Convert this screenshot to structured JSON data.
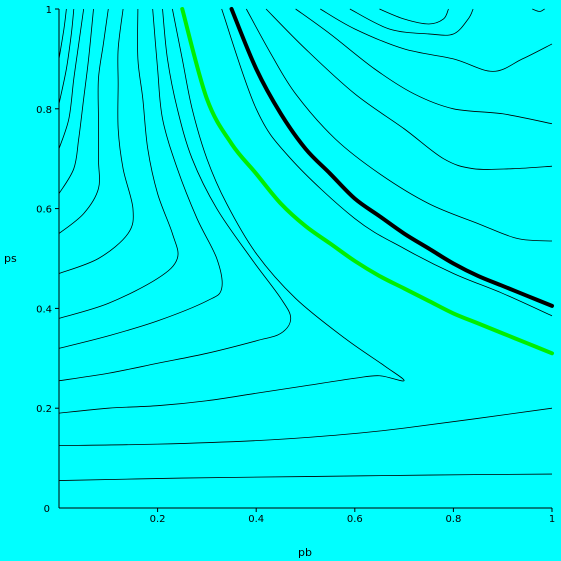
{
  "chart_data": {
    "type": "line",
    "title": "",
    "xlabel": "pb",
    "ylabel": "ps",
    "xlim": [
      0,
      1
    ],
    "ylim": [
      0,
      1
    ],
    "grid": false,
    "background": "#00ffff",
    "x_ticks": [
      "0.2",
      "0.4",
      "0.6",
      "0.8",
      "1"
    ],
    "y_ticks": [
      "0.2",
      "0.4",
      "0.6",
      "0.8",
      "1"
    ],
    "origin_label": "0",
    "contour_color": "#000000",
    "contours": [
      {
        "points": [
          [
            0.0,
            0.055
          ],
          [
            0.25,
            0.06
          ],
          [
            0.5,
            0.063
          ],
          [
            0.75,
            0.066
          ],
          [
            1.0,
            0.068
          ]
        ]
      },
      {
        "points": [
          [
            0.0,
            0.125
          ],
          [
            0.2,
            0.128
          ],
          [
            0.4,
            0.135
          ],
          [
            0.55,
            0.145
          ],
          [
            0.7,
            0.16
          ],
          [
            1.0,
            0.2
          ]
        ]
      },
      {
        "points": [
          [
            0.0,
            0.19
          ],
          [
            0.1,
            0.2
          ],
          [
            0.2,
            0.205
          ],
          [
            0.3,
            0.215
          ],
          [
            0.4,
            0.23
          ],
          [
            0.5,
            0.245
          ],
          [
            0.6,
            0.26
          ],
          [
            0.65,
            0.265
          ],
          [
            0.7,
            0.255
          ],
          [
            0.66,
            0.285
          ],
          [
            0.58,
            0.34
          ],
          [
            0.48,
            0.42
          ],
          [
            0.4,
            0.51
          ],
          [
            0.34,
            0.61
          ],
          [
            0.3,
            0.7
          ],
          [
            0.27,
            0.8
          ],
          [
            0.25,
            0.9
          ],
          [
            0.23,
            1.0
          ]
        ]
      },
      {
        "points": [
          [
            0.0,
            0.255
          ],
          [
            0.1,
            0.27
          ],
          [
            0.2,
            0.29
          ],
          [
            0.3,
            0.31
          ],
          [
            0.4,
            0.335
          ],
          [
            0.45,
            0.35
          ],
          [
            0.47,
            0.38
          ],
          [
            0.45,
            0.42
          ],
          [
            0.39,
            0.5
          ],
          [
            0.32,
            0.6
          ],
          [
            0.27,
            0.7
          ],
          [
            0.24,
            0.8
          ],
          [
            0.22,
            0.9
          ],
          [
            0.21,
            1.0
          ]
        ]
      },
      {
        "points": [
          [
            0.0,
            0.32
          ],
          [
            0.1,
            0.345
          ],
          [
            0.2,
            0.375
          ],
          [
            0.3,
            0.415
          ],
          [
            0.33,
            0.44
          ],
          [
            0.32,
            0.5
          ],
          [
            0.28,
            0.58
          ],
          [
            0.24,
            0.68
          ],
          [
            0.21,
            0.78
          ],
          [
            0.2,
            0.88
          ],
          [
            0.19,
            1.0
          ]
        ]
      },
      {
        "points": [
          [
            0.0,
            0.38
          ],
          [
            0.1,
            0.41
          ],
          [
            0.2,
            0.46
          ],
          [
            0.24,
            0.5
          ],
          [
            0.23,
            0.55
          ],
          [
            0.2,
            0.63
          ],
          [
            0.18,
            0.72
          ],
          [
            0.17,
            0.82
          ],
          [
            0.16,
            0.9
          ],
          [
            0.16,
            1.0
          ]
        ]
      },
      {
        "points": [
          [
            0.0,
            0.47
          ],
          [
            0.08,
            0.5
          ],
          [
            0.14,
            0.55
          ],
          [
            0.15,
            0.6
          ],
          [
            0.13,
            0.68
          ],
          [
            0.12,
            0.76
          ],
          [
            0.12,
            0.85
          ],
          [
            0.12,
            0.92
          ],
          [
            0.13,
            1.0
          ]
        ]
      },
      {
        "points": [
          [
            0.0,
            0.55
          ],
          [
            0.05,
            0.59
          ],
          [
            0.08,
            0.64
          ],
          [
            0.08,
            0.7
          ],
          [
            0.08,
            0.78
          ],
          [
            0.08,
            0.86
          ],
          [
            0.09,
            0.93
          ],
          [
            0.1,
            1.0
          ]
        ]
      },
      {
        "points": [
          [
            0.0,
            0.63
          ],
          [
            0.03,
            0.68
          ],
          [
            0.04,
            0.74
          ],
          [
            0.05,
            0.82
          ],
          [
            0.06,
            0.9
          ],
          [
            0.07,
            1.0
          ]
        ]
      },
      {
        "points": [
          [
            0.0,
            0.72
          ],
          [
            0.02,
            0.78
          ],
          [
            0.03,
            0.86
          ],
          [
            0.04,
            0.93
          ],
          [
            0.05,
            1.0
          ]
        ]
      },
      {
        "points": [
          [
            0.0,
            0.81
          ],
          [
            0.015,
            0.88
          ],
          [
            0.025,
            0.95
          ],
          [
            0.03,
            1.0
          ]
        ]
      },
      {
        "points": [
          [
            0.0,
            0.9
          ],
          [
            0.01,
            0.96
          ],
          [
            0.015,
            1.0
          ]
        ]
      },
      {
        "points": [
          [
            0.33,
            1.0
          ],
          [
            0.4,
            0.8
          ],
          [
            0.47,
            0.7
          ],
          [
            0.6,
            0.58
          ],
          [
            0.7,
            0.52
          ],
          [
            0.8,
            0.47
          ],
          [
            0.9,
            0.43
          ],
          [
            1.0,
            0.385
          ]
        ]
      },
      {
        "points": [
          [
            0.38,
            1.0
          ],
          [
            0.43,
            0.91
          ],
          [
            0.48,
            0.83
          ],
          [
            0.56,
            0.74
          ],
          [
            0.65,
            0.67
          ],
          [
            0.75,
            0.61
          ],
          [
            0.85,
            0.57
          ],
          [
            0.93,
            0.54
          ],
          [
            1.0,
            0.535
          ]
        ]
      },
      {
        "points": [
          [
            0.42,
            1.0
          ],
          [
            0.5,
            0.92
          ],
          [
            0.6,
            0.83
          ],
          [
            0.7,
            0.76
          ],
          [
            0.78,
            0.7
          ],
          [
            0.84,
            0.68
          ],
          [
            0.92,
            0.68
          ],
          [
            1.0,
            0.685
          ]
        ]
      },
      {
        "points": [
          [
            0.48,
            1.0
          ],
          [
            0.55,
            0.95
          ],
          [
            0.64,
            0.88
          ],
          [
            0.72,
            0.83
          ],
          [
            0.8,
            0.8
          ],
          [
            0.9,
            0.79
          ],
          [
            1.0,
            0.77
          ]
        ]
      },
      {
        "points": [
          [
            0.53,
            1.0
          ],
          [
            0.6,
            0.96
          ],
          [
            0.7,
            0.92
          ],
          [
            0.8,
            0.9
          ],
          [
            0.88,
            0.875
          ],
          [
            0.94,
            0.9
          ],
          [
            1.0,
            0.93
          ]
        ]
      },
      {
        "points": [
          [
            0.59,
            1.0
          ],
          [
            0.67,
            0.96
          ],
          [
            0.75,
            0.95
          ],
          [
            0.8,
            0.95
          ],
          [
            0.83,
            0.98
          ],
          [
            0.84,
            1.0
          ]
        ]
      },
      {
        "points": [
          [
            0.65,
            1.0
          ],
          [
            0.7,
            0.98
          ],
          [
            0.75,
            0.97
          ],
          [
            0.78,
            0.98
          ],
          [
            0.79,
            1.0
          ]
        ]
      },
      {
        "points": [
          [
            0.96,
            1.0
          ],
          [
            0.975,
            0.995
          ],
          [
            0.985,
            1.0
          ]
        ]
      }
    ],
    "highlight_series": [
      {
        "color": "#000000",
        "points": [
          [
            0.35,
            1.0
          ],
          [
            0.4,
            0.88
          ],
          [
            0.45,
            0.79
          ],
          [
            0.5,
            0.72
          ],
          [
            0.55,
            0.67
          ],
          [
            0.6,
            0.62
          ],
          [
            0.65,
            0.585
          ],
          [
            0.7,
            0.55
          ],
          [
            0.75,
            0.52
          ],
          [
            0.8,
            0.49
          ],
          [
            0.85,
            0.465
          ],
          [
            0.9,
            0.445
          ],
          [
            0.95,
            0.425
          ],
          [
            1.0,
            0.405
          ]
        ]
      },
      {
        "color": "#00ee00",
        "points": [
          [
            0.25,
            1.0
          ],
          [
            0.3,
            0.82
          ],
          [
            0.35,
            0.73
          ],
          [
            0.4,
            0.67
          ],
          [
            0.45,
            0.61
          ],
          [
            0.5,
            0.565
          ],
          [
            0.55,
            0.53
          ],
          [
            0.6,
            0.495
          ],
          [
            0.65,
            0.465
          ],
          [
            0.7,
            0.44
          ],
          [
            0.75,
            0.415
          ],
          [
            0.8,
            0.39
          ],
          [
            0.85,
            0.37
          ],
          [
            0.9,
            0.35
          ],
          [
            0.95,
            0.33
          ],
          [
            1.0,
            0.31
          ]
        ]
      }
    ]
  }
}
